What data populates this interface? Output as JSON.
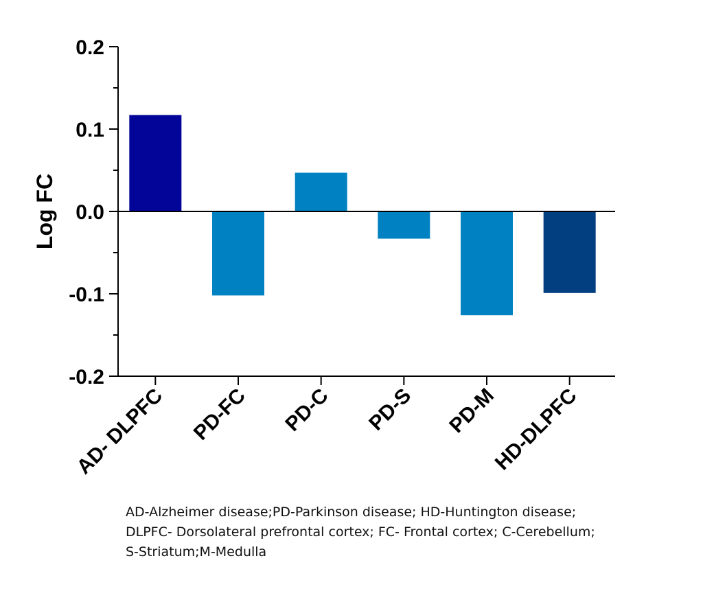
{
  "chart_data": {
    "type": "bar",
    "title": "",
    "xlabel": "",
    "ylabel": "Log FC",
    "ylim": [
      -0.2,
      0.2
    ],
    "yticks": [
      0.2,
      0.1,
      0.0,
      -0.1,
      -0.2
    ],
    "ytick_labels": [
      "0.2",
      "0.1",
      "0.0",
      "-0.1",
      "-0.2"
    ],
    "categories": [
      "AD- DLPFC",
      "PD-FC",
      "PD-C",
      "PD-S",
      "PD-M",
      "HD-DLPFC"
    ],
    "values": [
      0.117,
      -0.102,
      0.047,
      -0.033,
      -0.126,
      -0.099
    ],
    "colors": [
      "#020597",
      "#0081c1",
      "#0081c1",
      "#0081c1",
      "#0081c1",
      "#013f81"
    ],
    "grid": false,
    "legend": "none"
  },
  "footnote": {
    "lines": [
      "AD-Alzheimer disease;PD-Parkinson disease; HD-Huntington disease;",
      "DLPFC- Dorsolateral prefrontal cortex; FC- Frontal cortex; C-Cerebellum;",
      "S-Striatum;M-Medulla"
    ]
  }
}
